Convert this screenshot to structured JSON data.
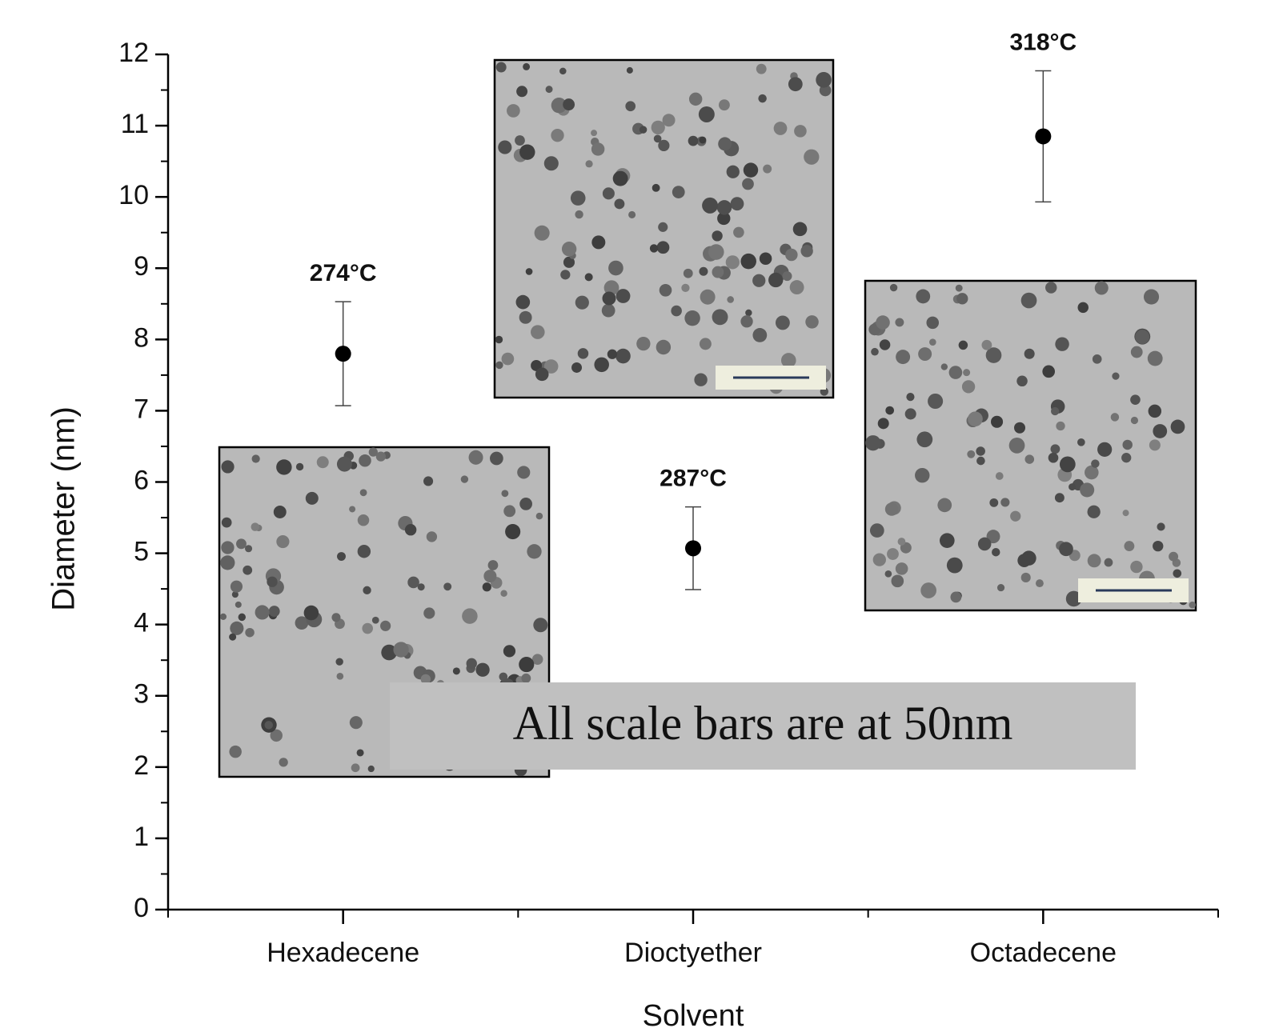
{
  "chart_data": {
    "type": "scatter",
    "categories": [
      "Hexadecene",
      "Dioctyether",
      "Octadecene"
    ],
    "values": [
      7.8,
      5.07,
      10.85
    ],
    "errors": [
      0.73,
      0.58,
      0.92
    ],
    "point_labels": [
      "274°C",
      "287°C",
      "318°C"
    ],
    "color": "#000000",
    "x_label": "Solvent",
    "y_label": "Diameter (nm)",
    "ylim": [
      0,
      12
    ],
    "yticks": [
      0,
      1,
      2,
      3,
      4,
      5,
      6,
      7,
      8,
      9,
      10,
      11,
      12
    ],
    "note": "All scale bars are at 50nm"
  }
}
